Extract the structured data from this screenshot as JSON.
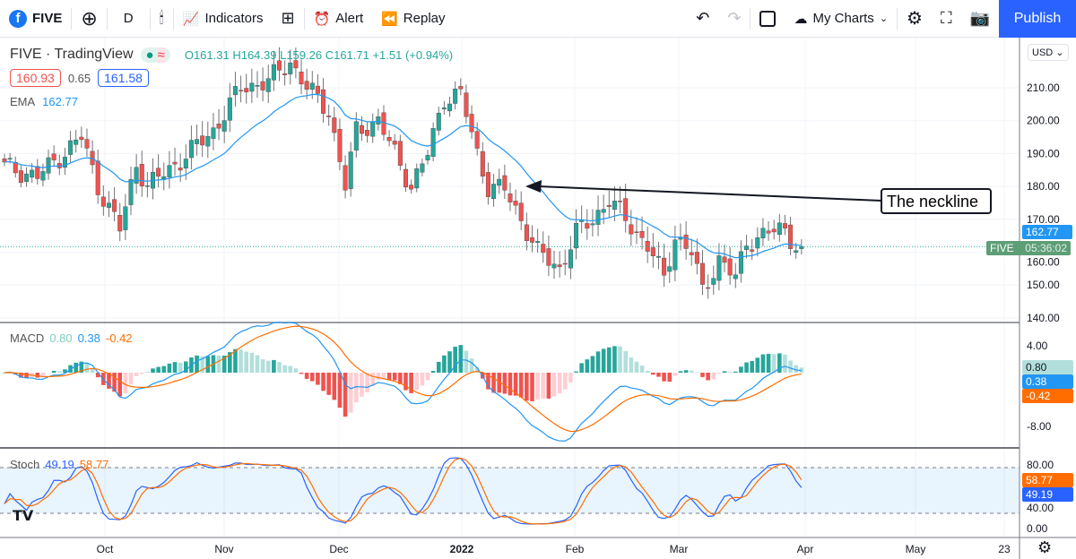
{
  "toolbar": {
    "symbol": "FIVE",
    "interval": "D",
    "indicators": "Indicators",
    "alert": "Alert",
    "replay": "Replay",
    "my_charts": "My Charts",
    "publish": "Publish"
  },
  "legend": {
    "title": "FIVE · TradingView",
    "ohlc": "O161.31 H164.39 L159.26 C161.71 +1.51 (+0.94%)",
    "bid": "160.93",
    "spread": "0.65",
    "ask": "161.58",
    "ema_label": "EMA",
    "ema_value": "162.77"
  },
  "macd_legend": {
    "label": "MACD",
    "hist": "0.80",
    "macd": "0.38",
    "signal": "-0.42"
  },
  "stoch_legend": {
    "label": "Stoch",
    "k": "49.19",
    "d": "58.77"
  },
  "currency": "USD",
  "annotation": "The neckline",
  "price_axis": [
    "210.00",
    "200.00",
    "190.00",
    "180.00",
    "170.00",
    "160.00",
    "150.00",
    "140.00"
  ],
  "macd_axis": [
    "4.00",
    "-8.00"
  ],
  "stoch_axis": [
    "80.00",
    "40.00",
    "0.00"
  ],
  "time_axis": [
    "Oct",
    "Nov",
    "Dec",
    "2022",
    "Feb",
    "Mar",
    "Apr",
    "May",
    "23"
  ],
  "price_labels": {
    "ema": "162.77",
    "symbol": "FIVE",
    "countdown": "05:36:02",
    "macd_hist": "0.80",
    "macd": "0.38",
    "signal": "-0.42",
    "stoch_d": "58.77",
    "stoch_k": "49.19"
  },
  "colors": {
    "up": "#26a69a",
    "down": "#ef5350",
    "ema": "#2196f3",
    "macd": "#2196f3",
    "signal": "#ff6d00",
    "stoch_k": "#2962ff",
    "stoch_d": "#ff6d00",
    "publish": "#2962ff"
  },
  "chart_data": {
    "type": "candlestick",
    "symbol": "FIVE",
    "ema_period": 20,
    "close_anchors": [
      [
        0,
        186
      ],
      [
        6,
        183
      ],
      [
        14,
        195
      ],
      [
        17,
        180
      ],
      [
        21,
        167
      ],
      [
        24,
        187
      ],
      [
        26,
        180
      ],
      [
        32,
        188
      ],
      [
        38,
        197
      ],
      [
        43,
        210
      ],
      [
        48,
        212
      ],
      [
        52,
        218
      ],
      [
        55,
        210
      ],
      [
        59,
        203
      ],
      [
        62,
        180
      ],
      [
        64,
        197
      ],
      [
        68,
        200
      ],
      [
        71,
        190
      ],
      [
        74,
        180
      ],
      [
        77,
        190
      ],
      [
        80,
        207
      ],
      [
        83,
        208
      ],
      [
        86,
        190
      ],
      [
        88,
        180
      ],
      [
        91,
        179
      ],
      [
        94,
        170
      ],
      [
        97,
        160
      ],
      [
        101,
        155
      ],
      [
        104,
        166
      ],
      [
        107,
        170
      ],
      [
        110,
        176
      ],
      [
        113,
        170
      ],
      [
        117,
        162
      ],
      [
        120,
        152
      ],
      [
        122,
        165
      ],
      [
        125,
        160
      ],
      [
        127,
        148
      ],
      [
        130,
        158
      ],
      [
        133,
        152
      ],
      [
        135,
        163
      ],
      [
        139,
        166
      ],
      [
        142,
        167
      ],
      [
        144,
        162
      ],
      [
        145,
        161.71
      ]
    ],
    "price_range": [
      140,
      215
    ],
    "macd_range": [
      -12,
      6
    ],
    "stoch_range": [
      0,
      100
    ]
  }
}
